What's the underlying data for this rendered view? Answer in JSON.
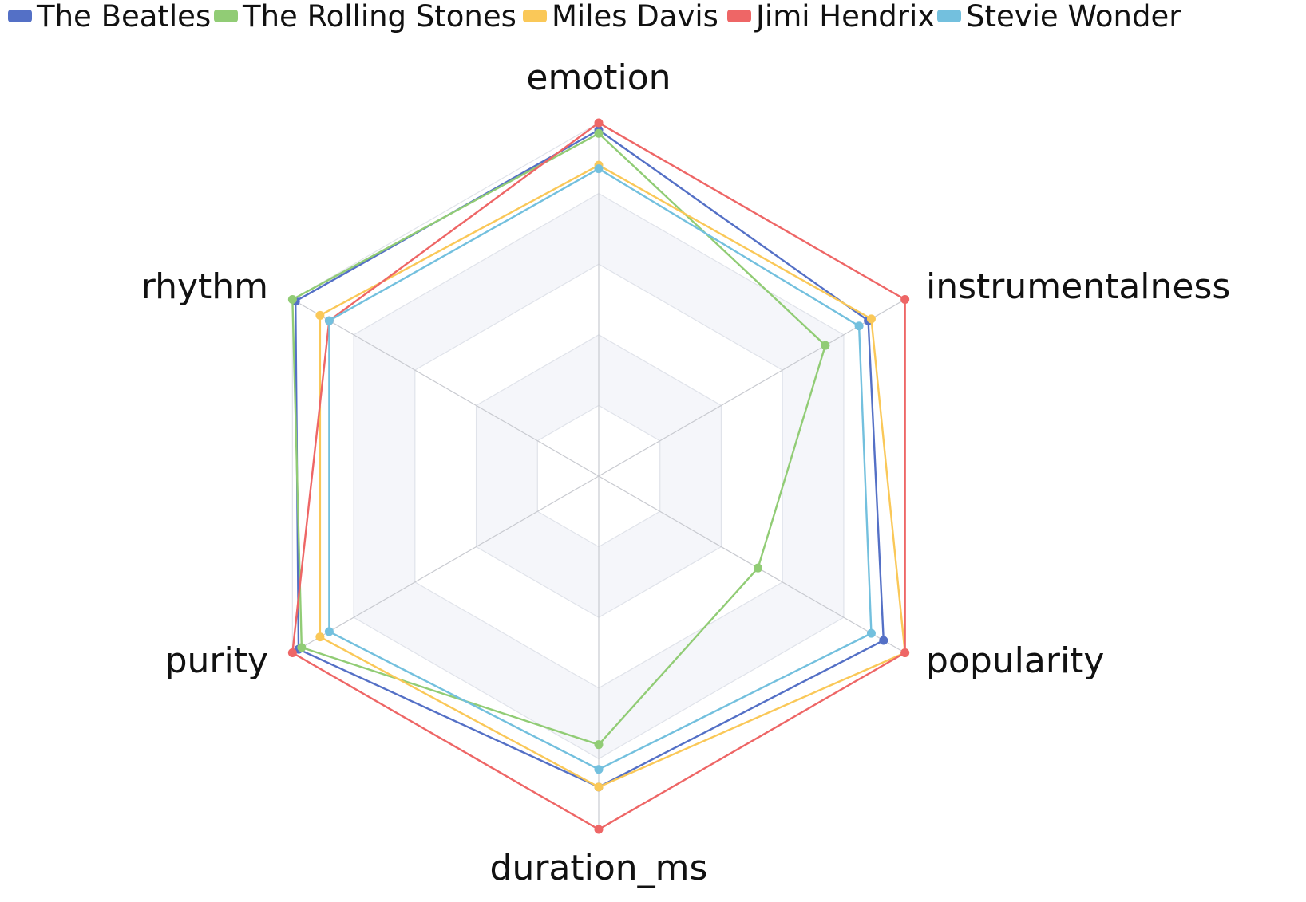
{
  "chart_data": {
    "type": "radar",
    "indicators": [
      "emotion",
      "instrumentalness",
      "popularity",
      "duration_ms",
      "purity",
      "rhythm"
    ],
    "max": 100,
    "split_number": 5,
    "series": [
      {
        "name": "The Beatles",
        "color": "#5470c6",
        "values": [
          98,
          88,
          93,
          88,
          98,
          99
        ]
      },
      {
        "name": "The Rolling Stones",
        "color": "#91cc75",
        "values": [
          97,
          74,
          52,
          76,
          97,
          100
        ]
      },
      {
        "name": "Miles Davis",
        "color": "#fac858",
        "values": [
          88,
          89,
          100,
          88,
          91,
          91
        ]
      },
      {
        "name": "Jimi Hendrix",
        "color": "#ee6666",
        "values": [
          100,
          100,
          100,
          100,
          100,
          88
        ]
      },
      {
        "name": "Stevie Wonder",
        "color": "#73c0de",
        "values": [
          87,
          85,
          89,
          83,
          88,
          88
        ]
      }
    ]
  }
}
